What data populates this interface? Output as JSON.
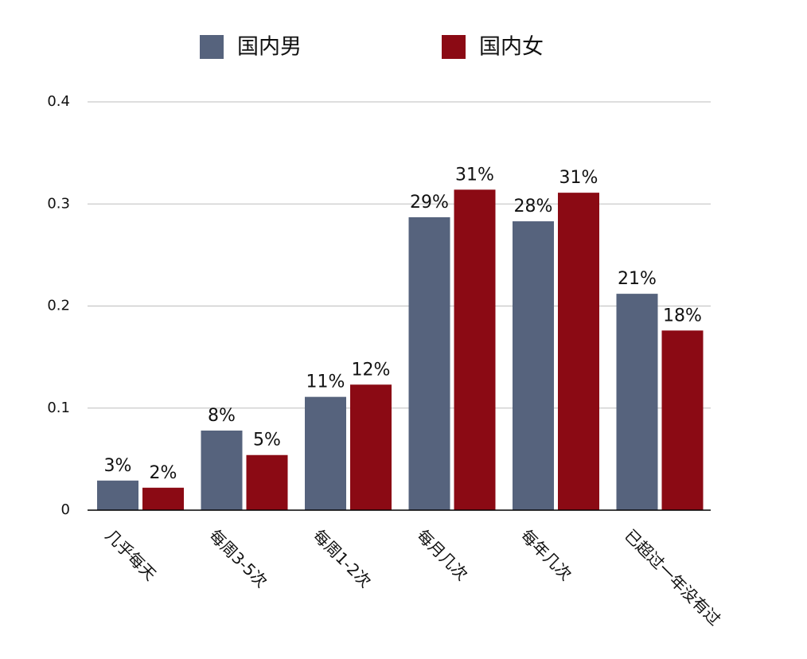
{
  "chart_data": {
    "type": "bar",
    "categories": [
      "几乎每天",
      "每周3-5次",
      "每周1-2次",
      "每月几次",
      "每年几次",
      "已超过一年没有过"
    ],
    "series": [
      {
        "name": "国内男",
        "color": "#56637d",
        "values": [
          0.029,
          0.078,
          0.111,
          0.287,
          0.283,
          0.212
        ],
        "value_labels": [
          "3%",
          "8%",
          "11%",
          "29%",
          "28%",
          "21%"
        ]
      },
      {
        "name": "国内女",
        "color": "#8b0a14",
        "values": [
          0.022,
          0.054,
          0.123,
          0.314,
          0.311,
          0.176
        ],
        "value_labels": [
          "2%",
          "5%",
          "12%",
          "31%",
          "31%",
          "18%"
        ]
      }
    ],
    "ylim": [
      0,
      0.4
    ],
    "yticks": [
      0,
      0.1,
      0.2,
      0.3,
      0.4
    ],
    "grid": true,
    "legend": "top"
  }
}
